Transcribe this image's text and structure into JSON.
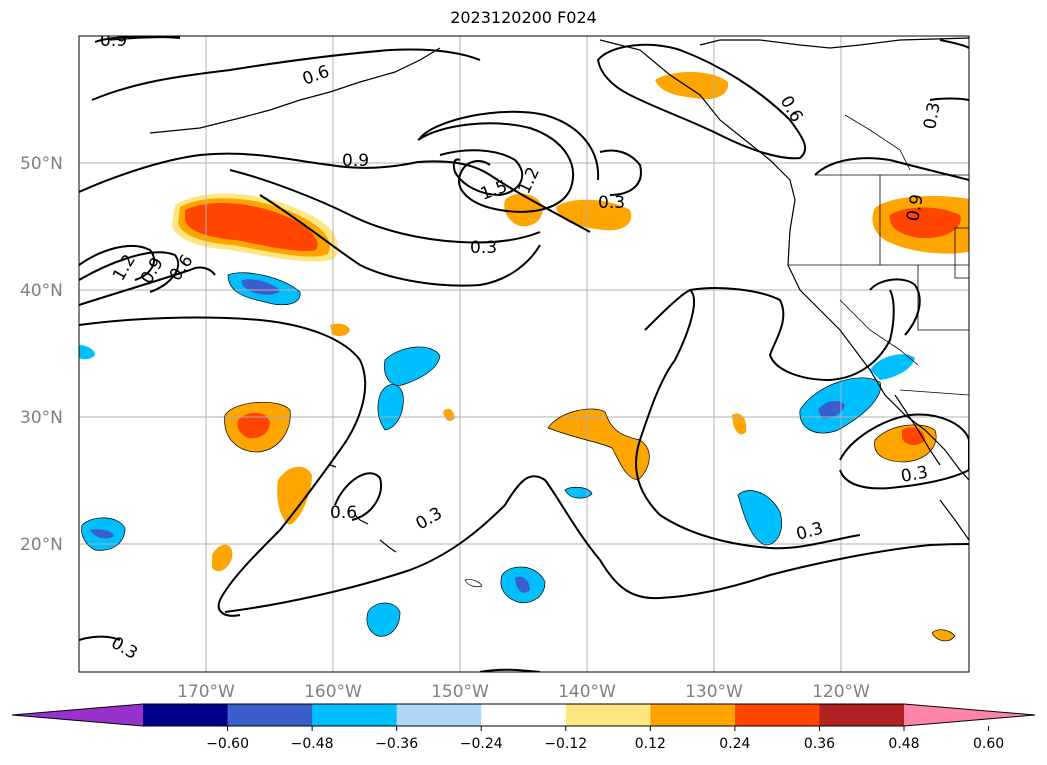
{
  "title": "2023120200 F024",
  "lat_labels": [
    "50°N",
    "40°N",
    "30°N",
    "20°N"
  ],
  "lon_labels": [
    "170°W",
    "160°W",
    "150°W",
    "140°W",
    "130°W",
    "120°W"
  ],
  "contour_labels": [
    "0.9",
    "0.6",
    "0.9",
    "1.5",
    "1.2",
    "0.3",
    "0.3",
    "1.2",
    "0.9",
    "0.6",
    "0.6",
    "0.3",
    "0.3",
    "0.3",
    "0.3",
    "0.6",
    "0.3",
    "0.9"
  ],
  "colorbar": {
    "ticks": [
      "−0.60",
      "−0.48",
      "−0.36",
      "−0.24",
      "−0.12",
      "0.12",
      "0.24",
      "0.36",
      "0.48",
      "0.60"
    ],
    "colors": [
      "#9932cc",
      "#00008b",
      "#3a5fcd",
      "#00bfff",
      "#add8f8",
      "#ffffff",
      "#ffe680",
      "#ffa500",
      "#ff4500",
      "#b22222",
      "#ff85a8"
    ]
  },
  "colors": {
    "orange": "#ffa500",
    "light_orange": "#ffe680",
    "red_orange": "#ff4500",
    "deep_sky_blue": "#00bfff",
    "light_blue": "#add8f8",
    "royal_blue": "#3a5fcd"
  }
}
